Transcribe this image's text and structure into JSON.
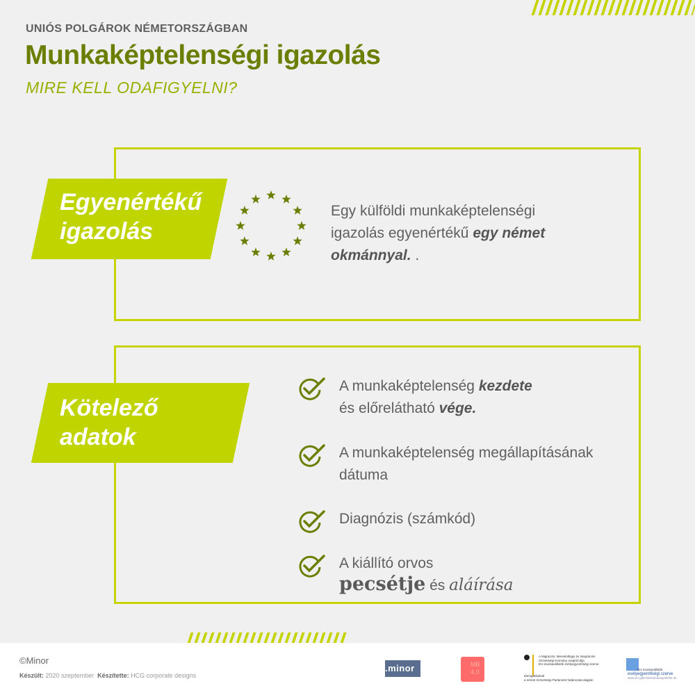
{
  "header": {
    "kicker": "UNIÓS POLGÁROK NÉMETORSZÁGBAN",
    "title": "Munkaképtelenségi igazolás",
    "subtitle": "MIRE KELL ODAFIGYELNI?"
  },
  "section1": {
    "label_line1": "Egyenértékű",
    "label_line2": "igazolás",
    "icon": "eu-stars-icon",
    "text_plain": "Egy külföldi munkaképtelenségi igazolás egyenértékű ",
    "text_bold": "egy német okmánnyal.",
    "text_end": " ."
  },
  "section2": {
    "label_line1": "Kötelező",
    "label_line2": "adatok",
    "items": [
      {
        "plain": "A munkaképtelenség ",
        "bold": "kezdete",
        "line2_plain": "és előrelátható ",
        "line2_bold": "vége."
      },
      {
        "plain": "A munkaképtelenség megállapításának dátuma"
      },
      {
        "plain": "Diagnózis (számkód)"
      },
      {
        "plain": "A kiállító orvos",
        "stamp": "pecsétje",
        "and": " és ",
        "signature": "aláírása"
      }
    ]
  },
  "footer": {
    "copyright": "©Minor",
    "made_label": "Készült:",
    "made_value": "2020 szeptember",
    "by_label": "Készítette:",
    "by_value": "HCG corporate designs",
    "logos": {
      "minor": ".minor",
      "mb": "MB 4.0",
      "ministry": [
        "A Migrációs, Menekültügyi és Integrációs",
        "Szövetségi Kormány megbízottja",
        "EU-munkavállalók esélyegyenlőségi szerve"
      ],
      "ministry_sub": [
        "támogatásával",
        "a német Szövetségi Parlament határozata alapján"
      ],
      "eu_line1": "EU-munkavállalók",
      "eu_line2": "esélyegyenlőségi szerve",
      "eu_url": "www.eu-gleichbehandungsstelle.de"
    }
  },
  "colors": {
    "title": "#6a7f00",
    "accent": "#c0d400",
    "text": "#5f5f5f"
  }
}
